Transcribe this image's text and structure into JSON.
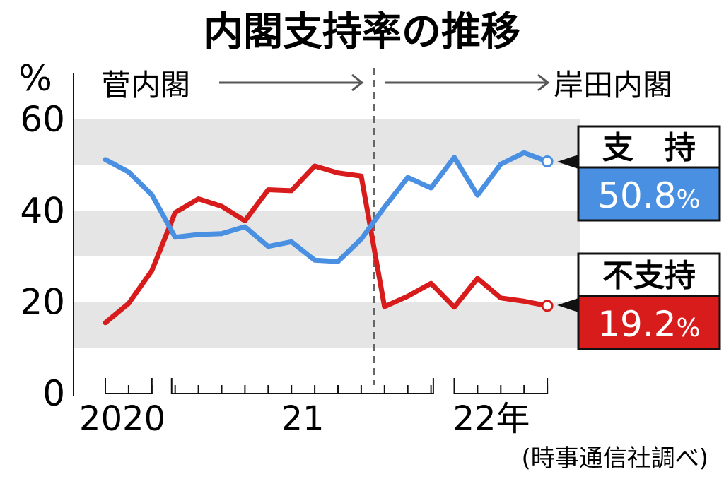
{
  "chart_data": {
    "type": "line",
    "title": "内閣支持率の推移",
    "y_unit": "%",
    "ylim": [
      0,
      60
    ],
    "y_ticks": [
      "0",
      "20",
      "40",
      "60"
    ],
    "grid_bands": true,
    "x_axis_labels": [
      "2020",
      "21",
      "22年"
    ],
    "eras": [
      {
        "label": "菅内閣",
        "start_index": 0,
        "end_index": 11
      },
      {
        "label": "岸田内閣",
        "start_index": 12,
        "end_index": 19
      }
    ],
    "series": [
      {
        "name": "支持",
        "color": "#4a90e2",
        "values": [
          51.2,
          48.5,
          43.5,
          34.2,
          34.8,
          35.0,
          36.5,
          32.2,
          33.2,
          29.2,
          28.9,
          33.8,
          40.8,
          47.3,
          45.0,
          51.7,
          43.4,
          50.2,
          52.7,
          50.8
        ]
      },
      {
        "name": "不支持",
        "color": "#d81b1b",
        "values": [
          15.5,
          19.7,
          26.9,
          39.6,
          42.6,
          41.0,
          37.8,
          44.6,
          44.4,
          49.8,
          48.3,
          47.6,
          19.0,
          21.3,
          24.1,
          18.9,
          25.2,
          20.9,
          20.2,
          19.2
        ]
      }
    ],
    "latest": {
      "support": {
        "label": "支　持",
        "value": "50.8",
        "unit": "%"
      },
      "disapprove": {
        "label": "不支持",
        "value": "19.2",
        "unit": "%"
      }
    },
    "source": "(時事通信社調べ)"
  }
}
